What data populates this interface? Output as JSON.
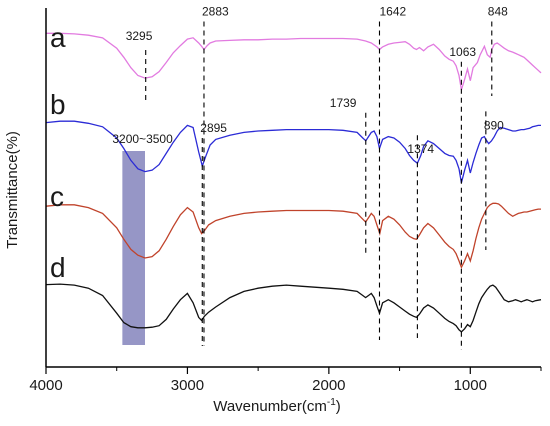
{
  "chart_data": {
    "type": "line",
    "xlabel": "Wavenumber(cm",
    "xlabel_sup": "-1",
    "xlabel_close": ")",
    "ylabel": "Transmittance(%)",
    "xlim": [
      4000,
      500
    ],
    "x_ticks": [
      "4000",
      "3000",
      "2000",
      "1000"
    ],
    "grid": false,
    "band": {
      "label": "3200~3500",
      "from": 3300,
      "to": 3460,
      "color": "#8b8bc0"
    },
    "dashed_markers": [
      {
        "x": 3295,
        "label": "3295",
        "curve": "a"
      },
      {
        "x": 2883,
        "label": "2883",
        "curve": "a"
      },
      {
        "x": 1642,
        "label": "1642",
        "curve": "a"
      },
      {
        "x": 1063,
        "label": "1063",
        "curve": "a"
      },
      {
        "x": 848,
        "label": "848",
        "curve": "a"
      },
      {
        "x": 2895,
        "label": "2895",
        "curve": "b"
      },
      {
        "x": 1739,
        "label": "1739",
        "curve": "b"
      },
      {
        "x": 1374,
        "label": "1374",
        "curve": "b"
      },
      {
        "x": 890,
        "label": "890",
        "curve": "b"
      }
    ],
    "series": [
      {
        "label": "a",
        "color": "#e27be0",
        "x": [
          4000,
          3900,
          3800,
          3700,
          3600,
          3500,
          3450,
          3400,
          3350,
          3300,
          3250,
          3200,
          3150,
          3100,
          3050,
          3000,
          2960,
          2920,
          2900,
          2883,
          2860,
          2840,
          2800,
          2700,
          2600,
          2500,
          2400,
          2300,
          2200,
          2100,
          2000,
          1900,
          1800,
          1740,
          1700,
          1660,
          1642,
          1620,
          1580,
          1540,
          1500,
          1460,
          1430,
          1400,
          1380,
          1360,
          1330,
          1300,
          1260,
          1220,
          1180,
          1150,
          1120,
          1100,
          1080,
          1063,
          1040,
          1020,
          1000,
          980,
          950,
          930,
          900,
          880,
          860,
          848,
          830,
          810,
          790,
          760,
          730,
          700,
          680,
          660,
          640,
          620,
          600,
          580,
          560,
          540,
          520,
          500
        ],
        "y": [
          0.05,
          0.05,
          0.06,
          0.08,
          0.12,
          0.28,
          0.42,
          0.58,
          0.7,
          0.74,
          0.72,
          0.64,
          0.5,
          0.35,
          0.24,
          0.14,
          0.12,
          0.2,
          0.25,
          0.3,
          0.24,
          0.2,
          0.17,
          0.16,
          0.15,
          0.15,
          0.14,
          0.14,
          0.13,
          0.13,
          0.13,
          0.13,
          0.14,
          0.17,
          0.2,
          0.26,
          0.3,
          0.26,
          0.22,
          0.2,
          0.19,
          0.18,
          0.22,
          0.28,
          0.3,
          0.27,
          0.32,
          0.26,
          0.22,
          0.3,
          0.4,
          0.45,
          0.48,
          0.55,
          0.7,
          0.92,
          0.76,
          0.6,
          0.78,
          0.58,
          0.5,
          0.38,
          0.25,
          0.38,
          0.42,
          0.3,
          0.22,
          0.2,
          0.23,
          0.28,
          0.32,
          0.34,
          0.36,
          0.38,
          0.4,
          0.42,
          0.46,
          0.5,
          0.54,
          0.58,
          0.62,
          0.66
        ]
      },
      {
        "label": "b",
        "color": "#2b2bd6",
        "x": [
          4000,
          3900,
          3800,
          3700,
          3600,
          3500,
          3450,
          3400,
          3350,
          3300,
          3250,
          3200,
          3150,
          3100,
          3050,
          3000,
          2960,
          2920,
          2895,
          2870,
          2840,
          2800,
          2700,
          2600,
          2500,
          2400,
          2300,
          2200,
          2100,
          2000,
          1900,
          1800,
          1760,
          1739,
          1720,
          1700,
          1680,
          1660,
          1642,
          1620,
          1580,
          1540,
          1500,
          1460,
          1430,
          1400,
          1374,
          1350,
          1330,
          1300,
          1260,
          1220,
          1180,
          1150,
          1120,
          1100,
          1080,
          1063,
          1040,
          1020,
          1000,
          980,
          960,
          940,
          920,
          900,
          890,
          870,
          850,
          830,
          810,
          790,
          760,
          730,
          700,
          680,
          660,
          640,
          620,
          600,
          580,
          560,
          540,
          520,
          500
        ],
        "y": [
          0.08,
          0.06,
          0.06,
          0.09,
          0.14,
          0.3,
          0.45,
          0.62,
          0.74,
          0.78,
          0.76,
          0.68,
          0.52,
          0.36,
          0.22,
          0.12,
          0.15,
          0.5,
          0.7,
          0.56,
          0.4,
          0.32,
          0.26,
          0.22,
          0.2,
          0.19,
          0.18,
          0.18,
          0.18,
          0.18,
          0.19,
          0.22,
          0.3,
          0.34,
          0.28,
          0.22,
          0.2,
          0.28,
          0.45,
          0.32,
          0.28,
          0.3,
          0.36,
          0.45,
          0.55,
          0.62,
          0.66,
          0.55,
          0.42,
          0.34,
          0.38,
          0.45,
          0.52,
          0.55,
          0.56,
          0.62,
          0.74,
          0.94,
          0.76,
          0.62,
          0.8,
          0.65,
          0.52,
          0.4,
          0.3,
          0.28,
          0.32,
          0.38,
          0.34,
          0.28,
          0.2,
          0.15,
          0.16,
          0.18,
          0.2,
          0.2,
          0.19,
          0.18,
          0.18,
          0.17,
          0.16,
          0.14,
          0.13,
          0.12,
          0.12
        ]
      },
      {
        "label": "c",
        "color": "#c0432b",
        "x": [
          4000,
          3900,
          3800,
          3700,
          3600,
          3500,
          3450,
          3400,
          3350,
          3300,
          3250,
          3200,
          3150,
          3100,
          3050,
          3000,
          2960,
          2920,
          2900,
          2880,
          2850,
          2800,
          2700,
          2600,
          2500,
          2400,
          2300,
          2200,
          2100,
          2000,
          1900,
          1800,
          1760,
          1740,
          1720,
          1700,
          1680,
          1660,
          1640,
          1620,
          1580,
          1540,
          1500,
          1460,
          1430,
          1400,
          1380,
          1360,
          1330,
          1300,
          1260,
          1220,
          1180,
          1150,
          1120,
          1100,
          1080,
          1063,
          1040,
          1020,
          1000,
          980,
          960,
          940,
          920,
          900,
          880,
          860,
          840,
          820,
          800,
          780,
          760,
          730,
          700,
          680,
          660,
          640,
          620,
          600,
          580,
          560,
          540,
          520,
          500
        ],
        "y": [
          0.1,
          0.08,
          0.08,
          0.12,
          0.2,
          0.4,
          0.56,
          0.7,
          0.78,
          0.82,
          0.8,
          0.72,
          0.56,
          0.38,
          0.22,
          0.12,
          0.18,
          0.4,
          0.48,
          0.44,
          0.36,
          0.3,
          0.24,
          0.2,
          0.18,
          0.17,
          0.16,
          0.16,
          0.16,
          0.16,
          0.17,
          0.2,
          0.28,
          0.32,
          0.26,
          0.2,
          0.24,
          0.36,
          0.48,
          0.3,
          0.24,
          0.28,
          0.36,
          0.46,
          0.52,
          0.55,
          0.56,
          0.5,
          0.4,
          0.34,
          0.4,
          0.5,
          0.6,
          0.66,
          0.7,
          0.76,
          0.86,
          0.95,
          0.86,
          0.76,
          0.86,
          0.72,
          0.55,
          0.4,
          0.28,
          0.2,
          0.12,
          0.08,
          0.06,
          0.06,
          0.07,
          0.1,
          0.14,
          0.2,
          0.24,
          0.22,
          0.2,
          0.19,
          0.18,
          0.18,
          0.17,
          0.16,
          0.15,
          0.14,
          0.14
        ]
      },
      {
        "label": "d",
        "color": "#111111",
        "x": [
          4000,
          3900,
          3800,
          3700,
          3600,
          3500,
          3450,
          3400,
          3350,
          3300,
          3250,
          3200,
          3150,
          3100,
          3050,
          3000,
          2960,
          2920,
          2900,
          2880,
          2850,
          2800,
          2700,
          2600,
          2500,
          2400,
          2300,
          2200,
          2100,
          2000,
          1900,
          1800,
          1760,
          1740,
          1720,
          1700,
          1680,
          1660,
          1642,
          1620,
          1580,
          1540,
          1500,
          1460,
          1430,
          1400,
          1380,
          1360,
          1330,
          1300,
          1260,
          1220,
          1180,
          1150,
          1120,
          1100,
          1080,
          1063,
          1040,
          1020,
          1000,
          980,
          960,
          940,
          920,
          900,
          880,
          860,
          840,
          820,
          800,
          780,
          760,
          730,
          700,
          680,
          660,
          640,
          620,
          600,
          580,
          560,
          540,
          520,
          500
        ],
        "y": [
          0.05,
          0.04,
          0.06,
          0.12,
          0.26,
          0.6,
          0.78,
          0.86,
          0.88,
          0.88,
          0.87,
          0.84,
          0.72,
          0.52,
          0.34,
          0.22,
          0.4,
          0.68,
          0.74,
          0.66,
          0.58,
          0.48,
          0.3,
          0.18,
          0.12,
          0.08,
          0.06,
          0.08,
          0.1,
          0.12,
          0.14,
          0.18,
          0.26,
          0.3,
          0.26,
          0.22,
          0.3,
          0.46,
          0.6,
          0.4,
          0.34,
          0.4,
          0.48,
          0.56,
          0.62,
          0.66,
          0.68,
          0.62,
          0.5,
          0.44,
          0.5,
          0.6,
          0.7,
          0.76,
          0.8,
          0.84,
          0.92,
          0.96,
          0.9,
          0.82,
          0.86,
          0.74,
          0.58,
          0.42,
          0.3,
          0.22,
          0.14,
          0.08,
          0.06,
          0.1,
          0.18,
          0.26,
          0.34,
          0.38,
          0.36,
          0.34,
          0.36,
          0.38,
          0.36,
          0.34,
          0.36,
          0.38,
          0.36,
          0.35,
          0.34
        ]
      }
    ]
  }
}
